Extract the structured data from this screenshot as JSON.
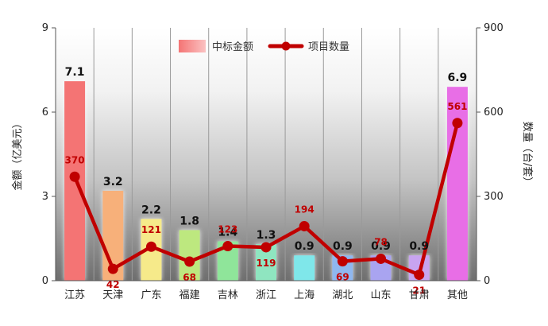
{
  "chart_data": {
    "type": "bar",
    "categories": [
      "江苏",
      "天津",
      "广东",
      "福建",
      "吉林",
      "浙江",
      "上海",
      "湖北",
      "山东",
      "甘肃",
      "其他"
    ],
    "series": [
      {
        "name": "中标金额",
        "type": "bar",
        "axis": "left",
        "values": [
          7.1,
          3.2,
          2.2,
          1.8,
          1.4,
          1.3,
          0.9,
          0.9,
          0.9,
          0.9,
          6.9
        ]
      },
      {
        "name": "项目数量",
        "type": "line",
        "axis": "right",
        "values": [
          370,
          42,
          121,
          68,
          123,
          119,
          194,
          69,
          78,
          21,
          561
        ]
      }
    ],
    "bar_colors": [
      "#f47474",
      "#f7b07a",
      "#f6ea8a",
      "#bde87f",
      "#8fe59a",
      "#8fe5c0",
      "#7fe7ea",
      "#8fb7ef",
      "#a9a4f0",
      "#c8a4f0",
      "#e86ee6"
    ],
    "line_color": "#c00000",
    "ylabel_left": "金额（亿美元）",
    "ylabel_right": "数量（台/套）",
    "ylim_left": [
      0,
      9
    ],
    "yticks_left": [
      "0",
      "3",
      "6",
      "9"
    ],
    "ylim_right": [
      0,
      900
    ],
    "yticks_right": [
      "0",
      "300",
      "600",
      "900"
    ],
    "grid": true,
    "legend_position": "top-center"
  }
}
